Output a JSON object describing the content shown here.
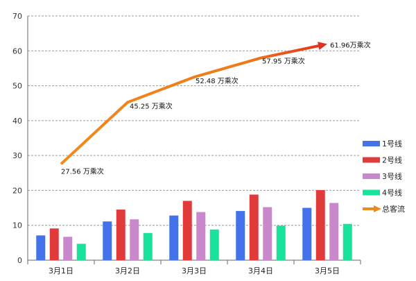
{
  "chart_data": {
    "type": "bar",
    "categories": [
      "3月1日",
      "3月2日",
      "3月3日",
      "3月4日",
      "3月5日"
    ],
    "ylim": [
      0,
      70
    ],
    "yticks": [
      0,
      10,
      20,
      30,
      40,
      50,
      60,
      70
    ],
    "grid": "horizontal dashed",
    "legend_position": "right",
    "series": [
      {
        "name": "1号线",
        "type": "bar",
        "color": "#4472E8",
        "values": [
          7.1,
          11.1,
          12.8,
          14.1,
          15.0
        ]
      },
      {
        "name": "2号线",
        "type": "bar",
        "color": "#E03A3A",
        "values": [
          9.1,
          14.5,
          17.0,
          18.8,
          20.1
        ]
      },
      {
        "name": "3号线",
        "type": "bar",
        "color": "#C987CC",
        "values": [
          6.7,
          11.7,
          13.8,
          15.2,
          16.4
        ]
      },
      {
        "name": "4号线",
        "type": "bar",
        "color": "#19E39A",
        "values": [
          4.7,
          7.8,
          8.8,
          9.9,
          10.4
        ]
      },
      {
        "name": "总客流",
        "type": "line",
        "color": "#F08A1A",
        "values": [
          27.56,
          45.25,
          52.48,
          57.95,
          61.96
        ],
        "labels": [
          "27.56 万乘次",
          "45.25 万乘次",
          "52.48 万乘次",
          "57.95 万乘次",
          "61.96万乘次"
        ]
      }
    ]
  }
}
